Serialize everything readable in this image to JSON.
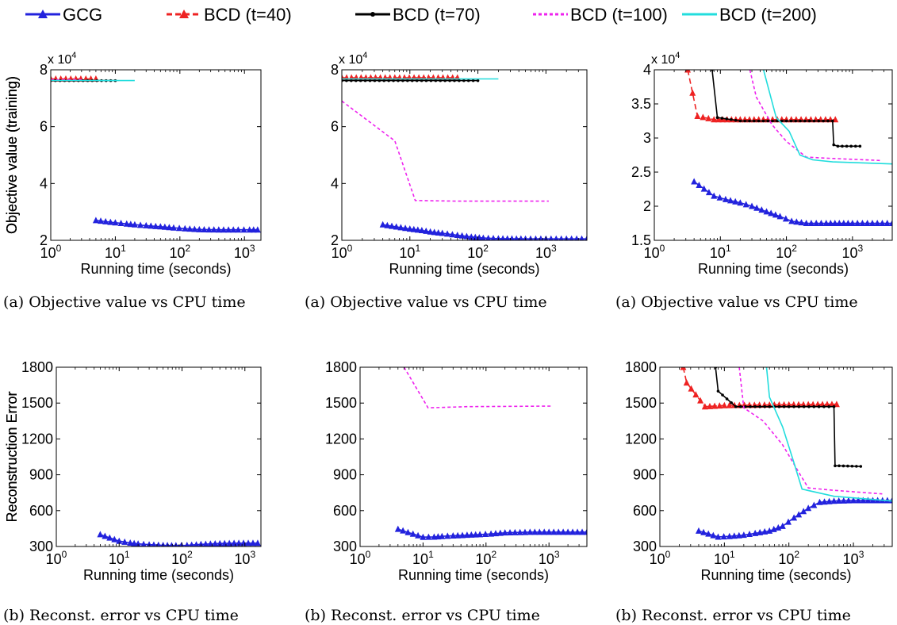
{
  "legend": {
    "entries": [
      {
        "name": "GCG",
        "color": "#2222dd",
        "dash": "solid",
        "marker": "triangle"
      },
      {
        "name": "BCD (t=40)",
        "color": "#ee2222",
        "dash": "dashed",
        "marker": "triangle"
      },
      {
        "name": "BCD (t=70)",
        "color": "#000000",
        "dash": "solid",
        "marker": "dot"
      },
      {
        "name": "BCD (t=100)",
        "color": "#ee22ee",
        "dash": "dotted",
        "marker": "none"
      },
      {
        "name": "BCD (t=200)",
        "color": "#22dddd",
        "dash": "solid",
        "marker": "none"
      }
    ]
  },
  "captions": {
    "top": "(a)  Objective value vs CPU time",
    "bottom": "(b)  Reconst. error vs CPU time"
  },
  "chart_data": [
    {
      "type": "line",
      "xscale": "log",
      "xlim": [
        1,
        1800
      ],
      "ylim": [
        2,
        8
      ],
      "xticks": [
        1,
        10,
        100,
        1000
      ],
      "xticklabels": [
        "10^0",
        "10^1",
        "10^2",
        "10^3"
      ],
      "yticks": [
        2,
        4,
        6,
        8
      ],
      "yticklabels": [
        "2",
        "4",
        "6",
        "8"
      ],
      "multiplier": "x 10^4",
      "xlabel": "Running time (seconds)",
      "ylabel": "Objective value (training)",
      "series": [
        {
          "name": "GCG",
          "x": [
            5,
            10,
            15,
            20,
            30,
            50,
            80,
            120,
            200,
            400,
            800,
            1200,
            1600
          ],
          "y": [
            2.7,
            2.62,
            2.58,
            2.55,
            2.52,
            2.48,
            2.44,
            2.41,
            2.38,
            2.37,
            2.37,
            2.37,
            2.37
          ]
        },
        {
          "name": "BCD (t=40)",
          "x": [
            1,
            5
          ],
          "y": [
            7.68,
            7.68
          ]
        },
        {
          "name": "BCD (t=70)",
          "x": [
            1,
            10
          ],
          "y": [
            7.62,
            7.62
          ]
        },
        {
          "name": "BCD (t=100)",
          "x": [
            1,
            3
          ],
          "y": [
            7.65,
            7.65
          ]
        },
        {
          "name": "BCD (t=200)",
          "x": [
            1,
            20
          ],
          "y": [
            7.62,
            7.62
          ]
        }
      ]
    },
    {
      "type": "line",
      "xscale": "log",
      "xlim": [
        1,
        4000
      ],
      "ylim": [
        2,
        8
      ],
      "xticks": [
        1,
        10,
        100,
        1000
      ],
      "xticklabels": [
        "10^0",
        "10^1",
        "10^2",
        "10^3"
      ],
      "yticks": [
        2,
        4,
        6,
        8
      ],
      "yticklabels": [
        "2",
        "4",
        "6",
        "8"
      ],
      "multiplier": "x 10^4",
      "xlabel": "Running time (seconds)",
      "ylabel": "Objective value (training)",
      "series": [
        {
          "name": "GCG",
          "x": [
            4,
            10,
            15,
            20,
            30,
            50,
            80,
            120,
            200,
            500,
            1000,
            2000,
            4000
          ],
          "y": [
            2.55,
            2.4,
            2.35,
            2.3,
            2.25,
            2.18,
            2.12,
            2.08,
            2.06,
            2.05,
            2.05,
            2.05,
            2.05
          ]
        },
        {
          "name": "BCD (t=40)",
          "x": [
            1,
            50
          ],
          "y": [
            7.72,
            7.72
          ]
        },
        {
          "name": "BCD (t=70)",
          "x": [
            1,
            100
          ],
          "y": [
            7.62,
            7.62
          ]
        },
        {
          "name": "BCD (t=100)",
          "x": [
            1,
            6,
            12,
            50,
            1100
          ],
          "y": [
            6.9,
            5.5,
            3.4,
            3.38,
            3.38
          ]
        },
        {
          "name": "BCD (t=200)",
          "x": [
            1,
            200
          ],
          "y": [
            7.68,
            7.68
          ]
        }
      ]
    },
    {
      "type": "line",
      "xscale": "log",
      "xlim": [
        1,
        4000
      ],
      "ylim": [
        1.5,
        4
      ],
      "xticks": [
        1,
        10,
        100,
        1000
      ],
      "xticklabels": [
        "10^0",
        "10^1",
        "10^2",
        "10^3"
      ],
      "yticks": [
        1.5,
        2,
        2.5,
        3,
        3.5,
        4
      ],
      "yticklabels": [
        "1.5",
        "2",
        "2.5",
        "3",
        "3.5",
        "4"
      ],
      "multiplier": "x 10^4",
      "xlabel": "Running time (seconds)",
      "ylabel": "Objective value (training)",
      "series": [
        {
          "name": "GCG",
          "x": [
            4,
            8,
            12,
            20,
            30,
            50,
            80,
            120,
            200,
            400,
            1000,
            2000,
            4000
          ],
          "y": [
            2.36,
            2.15,
            2.1,
            2.05,
            2.0,
            1.92,
            1.85,
            1.78,
            1.75,
            1.75,
            1.75,
            1.75,
            1.75
          ]
        },
        {
          "name": "BCD (t=40)",
          "x": [
            3.2,
            4.5,
            8,
            20,
            100,
            550
          ],
          "y": [
            4.0,
            3.32,
            3.27,
            3.27,
            3.27,
            3.27
          ]
        },
        {
          "name": "BCD (t=70)",
          "x": [
            7.5,
            9,
            20,
            100,
            500,
            520,
            600,
            1300
          ],
          "y": [
            4.0,
            3.3,
            3.25,
            3.25,
            3.25,
            2.9,
            2.88,
            2.88
          ]
        },
        {
          "name": "BCD (t=100)",
          "x": [
            28,
            35,
            60,
            100,
            200,
            500,
            2800
          ],
          "y": [
            4.0,
            3.6,
            3.2,
            2.95,
            2.72,
            2.7,
            2.67
          ]
        },
        {
          "name": "BCD (t=200)",
          "x": [
            45,
            70,
            110,
            160,
            250,
            500,
            4000
          ],
          "y": [
            4.0,
            3.3,
            3.1,
            2.75,
            2.68,
            2.65,
            2.62
          ]
        }
      ]
    },
    {
      "type": "line",
      "xscale": "log",
      "xlim": [
        1,
        1800
      ],
      "ylim": [
        300,
        1800
      ],
      "xticks": [
        1,
        10,
        100,
        1000
      ],
      "xticklabels": [
        "10^0",
        "10^1",
        "10^2",
        "10^3"
      ],
      "yticks": [
        300,
        600,
        900,
        1200,
        1500,
        1800
      ],
      "yticklabels": [
        "300",
        "600",
        "900",
        "1200",
        "1500",
        "1800"
      ],
      "xlabel": "Running time (seconds)",
      "ylabel": "Reconstruction Error",
      "series": [
        {
          "name": "GCG",
          "x": [
            5,
            10,
            15,
            20,
            30,
            50,
            80,
            120,
            200,
            400,
            800,
            1600
          ],
          "y": [
            400,
            345,
            330,
            322,
            315,
            310,
            308,
            310,
            318,
            325,
            328,
            328
          ]
        }
      ]
    },
    {
      "type": "line",
      "xscale": "log",
      "xlim": [
        1,
        4000
      ],
      "ylim": [
        300,
        1800
      ],
      "xticks": [
        1,
        10,
        100,
        1000
      ],
      "xticklabels": [
        "10^0",
        "10^1",
        "10^2",
        "10^3"
      ],
      "yticks": [
        300,
        600,
        900,
        1200,
        1500,
        1800
      ],
      "yticklabels": [
        "300",
        "600",
        "900",
        "1200",
        "1500",
        "1800"
      ],
      "xlabel": "Running time (seconds)",
      "ylabel": "Reconstruction Error",
      "series": [
        {
          "name": "GCG",
          "x": [
            4,
            10,
            15,
            20,
            30,
            50,
            80,
            120,
            200,
            500,
            1000,
            2000,
            4000
          ],
          "y": [
            445,
            378,
            380,
            385,
            390,
            395,
            400,
            405,
            415,
            420,
            420,
            420,
            420
          ]
        },
        {
          "name": "BCD (t=100)",
          "x": [
            5,
            12,
            50,
            1100
          ],
          "y": [
            1800,
            1460,
            1470,
            1475
          ]
        }
      ]
    },
    {
      "type": "line",
      "xscale": "log",
      "xlim": [
        1,
        4000
      ],
      "ylim": [
        300,
        1800
      ],
      "xticks": [
        1,
        10,
        100,
        1000
      ],
      "xticklabels": [
        "10^0",
        "10^1",
        "10^2",
        "10^3"
      ],
      "yticks": [
        300,
        600,
        900,
        1200,
        1500,
        1800
      ],
      "yticklabels": [
        "300",
        "600",
        "900",
        "1200",
        "1500",
        "1800"
      ],
      "xlabel": "Running time (seconds)",
      "ylabel": "Reconstruction Error",
      "series": [
        {
          "name": "GCG",
          "x": [
            4,
            8,
            12,
            20,
            30,
            50,
            80,
            120,
            200,
            300,
            500,
            1000,
            4000
          ],
          "y": [
            430,
            380,
            385,
            395,
            410,
            430,
            470,
            540,
            620,
            670,
            680,
            685,
            685
          ]
        },
        {
          "name": "BCD (t=40)",
          "x": [
            2.3,
            2.6,
            5,
            10,
            50,
            200,
            550
          ],
          "y": [
            1800,
            1670,
            1470,
            1480,
            1485,
            1488,
            1490
          ]
        },
        {
          "name": "BCD (t=70)",
          "x": [
            7.3,
            8,
            15,
            100,
            500,
            520,
            600,
            1300
          ],
          "y": [
            1800,
            1600,
            1470,
            1470,
            1470,
            975,
            975,
            970
          ]
        },
        {
          "name": "BCD (t=100)",
          "x": [
            17,
            20,
            40,
            80,
            150,
            200,
            500,
            2800
          ],
          "y": [
            1800,
            1460,
            1350,
            1150,
            900,
            790,
            770,
            740
          ]
        },
        {
          "name": "BCD (t=200)",
          "x": [
            45,
            50,
            80,
            120,
            160,
            500,
            4000
          ],
          "y": [
            1800,
            1550,
            1300,
            1000,
            780,
            720,
            680
          ]
        }
      ]
    }
  ]
}
